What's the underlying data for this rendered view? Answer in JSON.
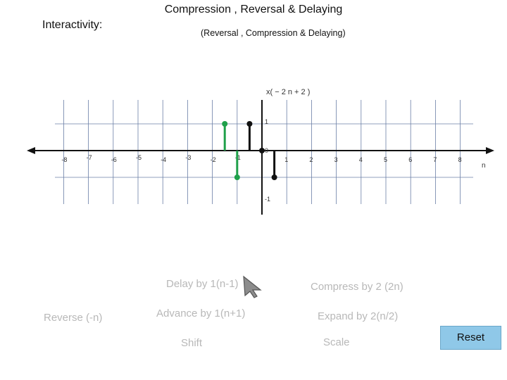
{
  "title": "Compression , Reversal & Delaying",
  "interactivity_label": "Interactivity:",
  "subtitle": "(Reversal , Compression & Delaying)",
  "plot": {
    "signal_label": "x( − 2 n + 2 )",
    "axis_label": "n",
    "x_ticks": [
      {
        "n": -8,
        "label": "-8"
      },
      {
        "n": -7,
        "label": "-7"
      },
      {
        "n": -6,
        "label": "-6"
      },
      {
        "n": -5,
        "label": "-5"
      },
      {
        "n": -4,
        "label": "-4"
      },
      {
        "n": -3,
        "label": "-3"
      },
      {
        "n": -2,
        "label": "-2"
      },
      {
        "n": -1,
        "label": "-1"
      },
      {
        "n": 1,
        "label": "1"
      },
      {
        "n": 2,
        "label": "2"
      },
      {
        "n": 3,
        "label": "3"
      },
      {
        "n": 4,
        "label": "4"
      },
      {
        "n": 5,
        "label": "5"
      },
      {
        "n": 6,
        "label": "6"
      },
      {
        "n": 7,
        "label": "7"
      },
      {
        "n": 8,
        "label": "8"
      }
    ],
    "origin_label": "0",
    "y_ticks": [
      {
        "v": 1,
        "label": "1"
      },
      {
        "v": -1,
        "label": "-1"
      }
    ],
    "samples": [
      {
        "n": -1.5,
        "v": 1,
        "color": "#1fa04a"
      },
      {
        "n": -1,
        "v": -1,
        "color": "#1fa04a"
      },
      {
        "n": -0.5,
        "v": 1,
        "color": "#111111"
      },
      {
        "n": 0,
        "v": 0,
        "color": "#111111"
      },
      {
        "n": 0.5,
        "v": -1,
        "color": "#111111"
      }
    ],
    "colors": {
      "grid": "#6b7fa6",
      "axis": "#111111",
      "green": "#1fa04a",
      "black": "#111111"
    }
  },
  "buttons": {
    "delay": "Delay by 1(n-1)",
    "compress": "Compress by 2 (2n)",
    "reverse": "Reverse (-n)",
    "advance": "Advance by 1(n+1)",
    "expand": "Expand by 2(n/2)",
    "shift": "Shift",
    "scale": "Scale",
    "reset": "Reset"
  },
  "reset_color": "#8fc8e8"
}
